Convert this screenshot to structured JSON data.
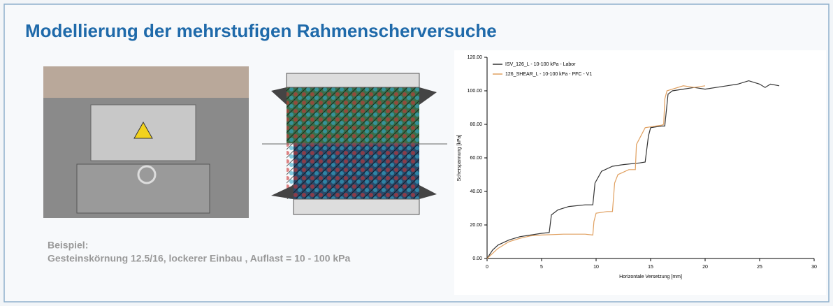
{
  "header": {
    "title": "Modellierung der mehrstufigen Rahmenscherversuche"
  },
  "caption": {
    "line1": "Beispiel:",
    "line2": "Gesteinskörnung 12.5/16,  lockerer Einbau , Auflast = 10 - 100 kPa"
  },
  "chart_data": {
    "type": "line",
    "xlabel": "Horizontale Versetzung [mm]",
    "ylabel": "Scherspannung [kPa]",
    "xlim": [
      0,
      30
    ],
    "xticks": [
      0,
      5,
      10,
      15,
      20,
      25,
      30
    ],
    "ylim": [
      0,
      120
    ],
    "yticks": [
      {
        "value": 0,
        "label": "0.00"
      },
      {
        "value": 20,
        "label": "20.00"
      },
      {
        "value": 40,
        "label": "40.00"
      },
      {
        "value": 60,
        "label": "60.00"
      },
      {
        "value": 80,
        "label": "80.00"
      },
      {
        "value": 100,
        "label": "100.00"
      },
      {
        "value": 120,
        "label": "120.00"
      }
    ],
    "grid": false,
    "legend": "upper-left",
    "series": [
      {
        "name": "ISV_126_L - 10-100 kPa - Labor",
        "color": "#333333",
        "x": [
          0,
          0.5,
          1,
          2,
          3,
          4,
          5,
          5.7,
          5.9,
          6.5,
          7.5,
          9,
          9.7,
          9.9,
          10.5,
          11.5,
          12.5,
          14,
          14.5,
          14.8,
          15,
          16,
          16.3,
          16.6,
          17,
          18,
          19,
          20,
          21,
          22,
          23,
          24,
          25,
          25.5,
          26,
          26.8
        ],
        "values": [
          0,
          5,
          8,
          11,
          13,
          14,
          15,
          15.5,
          26,
          29,
          31,
          32,
          32,
          45,
          52,
          55,
          56,
          57,
          57.5,
          73,
          78,
          79,
          79,
          98,
          100,
          101,
          102,
          101,
          102,
          103,
          104,
          106,
          104,
          102,
          104,
          103
        ]
      },
      {
        "name": "126_SHEAR_L - 10-100 kPa - PFC - V1",
        "color": "#e0a060",
        "x": [
          0,
          0.5,
          1,
          2,
          3,
          4,
          5,
          7,
          9,
          9.7,
          9.8,
          10,
          11,
          11.5,
          11.7,
          12,
          13,
          13.6,
          13.7,
          14.5,
          15.5,
          16,
          16.2,
          16.3,
          16.5,
          17,
          18,
          19,
          20
        ],
        "values": [
          0,
          3,
          6,
          10,
          12,
          13.5,
          14,
          14.5,
          14.5,
          14,
          22,
          27,
          28,
          28,
          45,
          50,
          53,
          53,
          68,
          78,
          79,
          79.5,
          80,
          95,
          100,
          101,
          103,
          102,
          103
        ]
      }
    ]
  }
}
